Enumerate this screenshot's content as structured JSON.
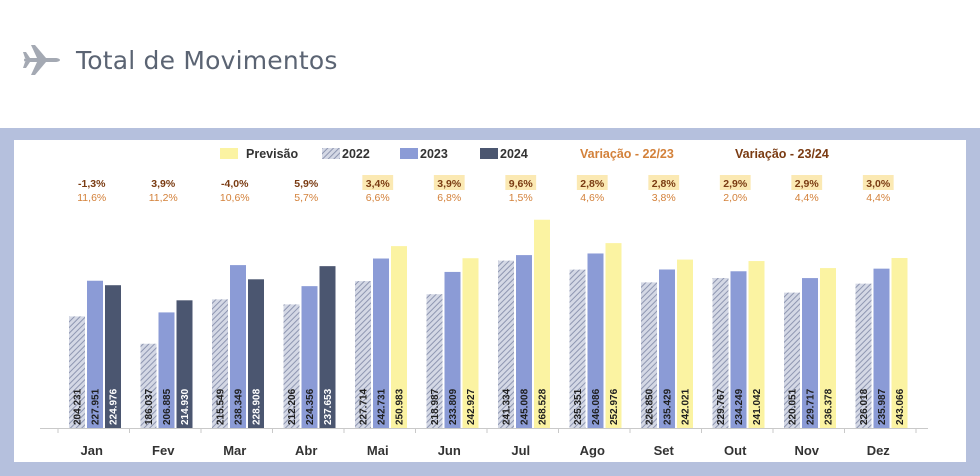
{
  "page": {
    "title": "Total de Movimentos",
    "icon": "airplane-icon"
  },
  "colors": {
    "s2022": "#a9b0c6",
    "s2023": "#8b9bd6",
    "s2024": "#4b5670",
    "previsao": "#fbf3a2",
    "var2223": "#d3813a",
    "var2324": "#7a3b12",
    "highlight": "#fbe9b3"
  },
  "chart_data": {
    "type": "bar",
    "title": "",
    "xlabel": "",
    "ylabel": "",
    "ylim": [
      130000,
      275000
    ],
    "grid": false,
    "legend_position": "top",
    "legend": {
      "previsao": "Previsão",
      "s2022": "2022",
      "s2023": "2023",
      "s2024": "2024",
      "var2223": "Variação - 22/23",
      "var2324": "Variação - 23/24"
    },
    "categories": [
      "Jan",
      "Fev",
      "Mar",
      "Abr",
      "Mai",
      "Jun",
      "Jul",
      "Ago",
      "Set",
      "Out",
      "Nov",
      "Dez"
    ],
    "series": [
      {
        "name": "2022",
        "values": [
          204231,
          186037,
          215549,
          212206,
          227714,
          218987,
          241334,
          235351,
          226850,
          229767,
          220051,
          226018
        ]
      },
      {
        "name": "2023",
        "values": [
          227951,
          206885,
          238349,
          224356,
          242731,
          233809,
          245008,
          246086,
          235429,
          234249,
          229717,
          235987
        ]
      },
      {
        "name": "2024",
        "values": [
          224976,
          214930,
          228908,
          237653,
          null,
          null,
          null,
          null,
          null,
          null,
          null,
          null
        ]
      },
      {
        "name": "Previsão",
        "values": [
          null,
          null,
          null,
          null,
          250983,
          242927,
          268528,
          252976,
          242021,
          241042,
          236378,
          243066
        ]
      }
    ],
    "value_labels": [
      [
        "204.231",
        "227.951",
        "224.976"
      ],
      [
        "186.037",
        "206.885",
        "214.930"
      ],
      [
        "215.549",
        "238.349",
        "228.908"
      ],
      [
        "212.206",
        "224.356",
        "237.653"
      ],
      [
        "227.714",
        "242.731",
        "250.983"
      ],
      [
        "218.987",
        "233.809",
        "242.927"
      ],
      [
        "241.334",
        "245.008",
        "268.528"
      ],
      [
        "235.351",
        "246.086",
        "252.976"
      ],
      [
        "226.850",
        "235.429",
        "242.021"
      ],
      [
        "229.767",
        "234.249",
        "241.042"
      ],
      [
        "220.051",
        "229.717",
        "236.378"
      ],
      [
        "226.018",
        "235.987",
        "243.066"
      ]
    ],
    "variation_23_24": [
      "-1,3%",
      "3,9%",
      "-4,0%",
      "5,9%",
      "3,4%",
      "3,9%",
      "9,6%",
      "2,8%",
      "2,8%",
      "2,9%",
      "2,9%",
      "3,0%"
    ],
    "variation_22_23": [
      "11,6%",
      "11,2%",
      "10,6%",
      "5,7%",
      "6,6%",
      "6,8%",
      "1,5%",
      "4,6%",
      "3,8%",
      "2,0%",
      "4,4%",
      "4,4%"
    ],
    "variation_23_24_highlighted": [
      false,
      false,
      false,
      false,
      true,
      true,
      true,
      true,
      true,
      true,
      true,
      true
    ]
  }
}
